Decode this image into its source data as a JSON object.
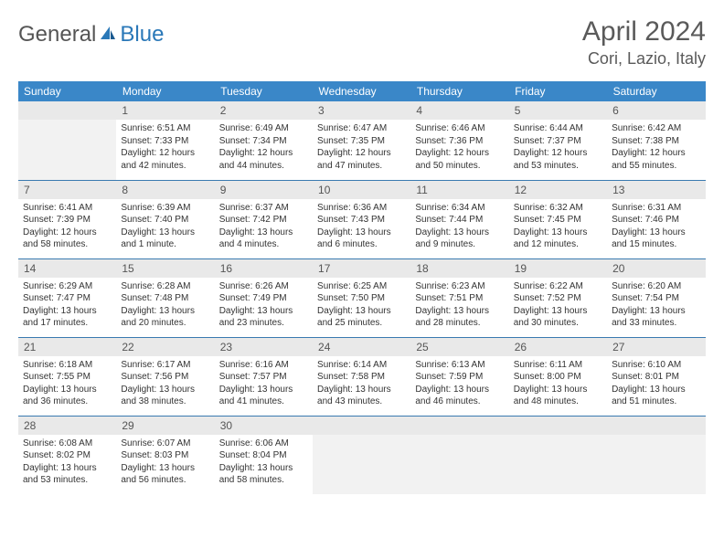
{
  "logo": {
    "part1": "General",
    "part2": "Blue"
  },
  "title": "April 2024",
  "location": "Cori, Lazio, Italy",
  "weekdays": [
    "Sunday",
    "Monday",
    "Tuesday",
    "Wednesday",
    "Thursday",
    "Friday",
    "Saturday"
  ],
  "colors": {
    "header_bg": "#3a87c8",
    "header_text": "#ffffff",
    "daynum_bg": "#e9e9e9",
    "border": "#3a7ab0",
    "text": "#333333",
    "title_text": "#5a5a5a"
  },
  "layout": {
    "first_weekday_index": 1,
    "days_in_month": 30
  },
  "days": {
    "1": {
      "sunrise": "Sunrise: 6:51 AM",
      "sunset": "Sunset: 7:33 PM",
      "daylight1": "Daylight: 12 hours",
      "daylight2": "and 42 minutes."
    },
    "2": {
      "sunrise": "Sunrise: 6:49 AM",
      "sunset": "Sunset: 7:34 PM",
      "daylight1": "Daylight: 12 hours",
      "daylight2": "and 44 minutes."
    },
    "3": {
      "sunrise": "Sunrise: 6:47 AM",
      "sunset": "Sunset: 7:35 PM",
      "daylight1": "Daylight: 12 hours",
      "daylight2": "and 47 minutes."
    },
    "4": {
      "sunrise": "Sunrise: 6:46 AM",
      "sunset": "Sunset: 7:36 PM",
      "daylight1": "Daylight: 12 hours",
      "daylight2": "and 50 minutes."
    },
    "5": {
      "sunrise": "Sunrise: 6:44 AM",
      "sunset": "Sunset: 7:37 PM",
      "daylight1": "Daylight: 12 hours",
      "daylight2": "and 53 minutes."
    },
    "6": {
      "sunrise": "Sunrise: 6:42 AM",
      "sunset": "Sunset: 7:38 PM",
      "daylight1": "Daylight: 12 hours",
      "daylight2": "and 55 minutes."
    },
    "7": {
      "sunrise": "Sunrise: 6:41 AM",
      "sunset": "Sunset: 7:39 PM",
      "daylight1": "Daylight: 12 hours",
      "daylight2": "and 58 minutes."
    },
    "8": {
      "sunrise": "Sunrise: 6:39 AM",
      "sunset": "Sunset: 7:40 PM",
      "daylight1": "Daylight: 13 hours",
      "daylight2": "and 1 minute."
    },
    "9": {
      "sunrise": "Sunrise: 6:37 AM",
      "sunset": "Sunset: 7:42 PM",
      "daylight1": "Daylight: 13 hours",
      "daylight2": "and 4 minutes."
    },
    "10": {
      "sunrise": "Sunrise: 6:36 AM",
      "sunset": "Sunset: 7:43 PM",
      "daylight1": "Daylight: 13 hours",
      "daylight2": "and 6 minutes."
    },
    "11": {
      "sunrise": "Sunrise: 6:34 AM",
      "sunset": "Sunset: 7:44 PM",
      "daylight1": "Daylight: 13 hours",
      "daylight2": "and 9 minutes."
    },
    "12": {
      "sunrise": "Sunrise: 6:32 AM",
      "sunset": "Sunset: 7:45 PM",
      "daylight1": "Daylight: 13 hours",
      "daylight2": "and 12 minutes."
    },
    "13": {
      "sunrise": "Sunrise: 6:31 AM",
      "sunset": "Sunset: 7:46 PM",
      "daylight1": "Daylight: 13 hours",
      "daylight2": "and 15 minutes."
    },
    "14": {
      "sunrise": "Sunrise: 6:29 AM",
      "sunset": "Sunset: 7:47 PM",
      "daylight1": "Daylight: 13 hours",
      "daylight2": "and 17 minutes."
    },
    "15": {
      "sunrise": "Sunrise: 6:28 AM",
      "sunset": "Sunset: 7:48 PM",
      "daylight1": "Daylight: 13 hours",
      "daylight2": "and 20 minutes."
    },
    "16": {
      "sunrise": "Sunrise: 6:26 AM",
      "sunset": "Sunset: 7:49 PM",
      "daylight1": "Daylight: 13 hours",
      "daylight2": "and 23 minutes."
    },
    "17": {
      "sunrise": "Sunrise: 6:25 AM",
      "sunset": "Sunset: 7:50 PM",
      "daylight1": "Daylight: 13 hours",
      "daylight2": "and 25 minutes."
    },
    "18": {
      "sunrise": "Sunrise: 6:23 AM",
      "sunset": "Sunset: 7:51 PM",
      "daylight1": "Daylight: 13 hours",
      "daylight2": "and 28 minutes."
    },
    "19": {
      "sunrise": "Sunrise: 6:22 AM",
      "sunset": "Sunset: 7:52 PM",
      "daylight1": "Daylight: 13 hours",
      "daylight2": "and 30 minutes."
    },
    "20": {
      "sunrise": "Sunrise: 6:20 AM",
      "sunset": "Sunset: 7:54 PM",
      "daylight1": "Daylight: 13 hours",
      "daylight2": "and 33 minutes."
    },
    "21": {
      "sunrise": "Sunrise: 6:18 AM",
      "sunset": "Sunset: 7:55 PM",
      "daylight1": "Daylight: 13 hours",
      "daylight2": "and 36 minutes."
    },
    "22": {
      "sunrise": "Sunrise: 6:17 AM",
      "sunset": "Sunset: 7:56 PM",
      "daylight1": "Daylight: 13 hours",
      "daylight2": "and 38 minutes."
    },
    "23": {
      "sunrise": "Sunrise: 6:16 AM",
      "sunset": "Sunset: 7:57 PM",
      "daylight1": "Daylight: 13 hours",
      "daylight2": "and 41 minutes."
    },
    "24": {
      "sunrise": "Sunrise: 6:14 AM",
      "sunset": "Sunset: 7:58 PM",
      "daylight1": "Daylight: 13 hours",
      "daylight2": "and 43 minutes."
    },
    "25": {
      "sunrise": "Sunrise: 6:13 AM",
      "sunset": "Sunset: 7:59 PM",
      "daylight1": "Daylight: 13 hours",
      "daylight2": "and 46 minutes."
    },
    "26": {
      "sunrise": "Sunrise: 6:11 AM",
      "sunset": "Sunset: 8:00 PM",
      "daylight1": "Daylight: 13 hours",
      "daylight2": "and 48 minutes."
    },
    "27": {
      "sunrise": "Sunrise: 6:10 AM",
      "sunset": "Sunset: 8:01 PM",
      "daylight1": "Daylight: 13 hours",
      "daylight2": "and 51 minutes."
    },
    "28": {
      "sunrise": "Sunrise: 6:08 AM",
      "sunset": "Sunset: 8:02 PM",
      "daylight1": "Daylight: 13 hours",
      "daylight2": "and 53 minutes."
    },
    "29": {
      "sunrise": "Sunrise: 6:07 AM",
      "sunset": "Sunset: 8:03 PM",
      "daylight1": "Daylight: 13 hours",
      "daylight2": "and 56 minutes."
    },
    "30": {
      "sunrise": "Sunrise: 6:06 AM",
      "sunset": "Sunset: 8:04 PM",
      "daylight1": "Daylight: 13 hours",
      "daylight2": "and 58 minutes."
    }
  }
}
